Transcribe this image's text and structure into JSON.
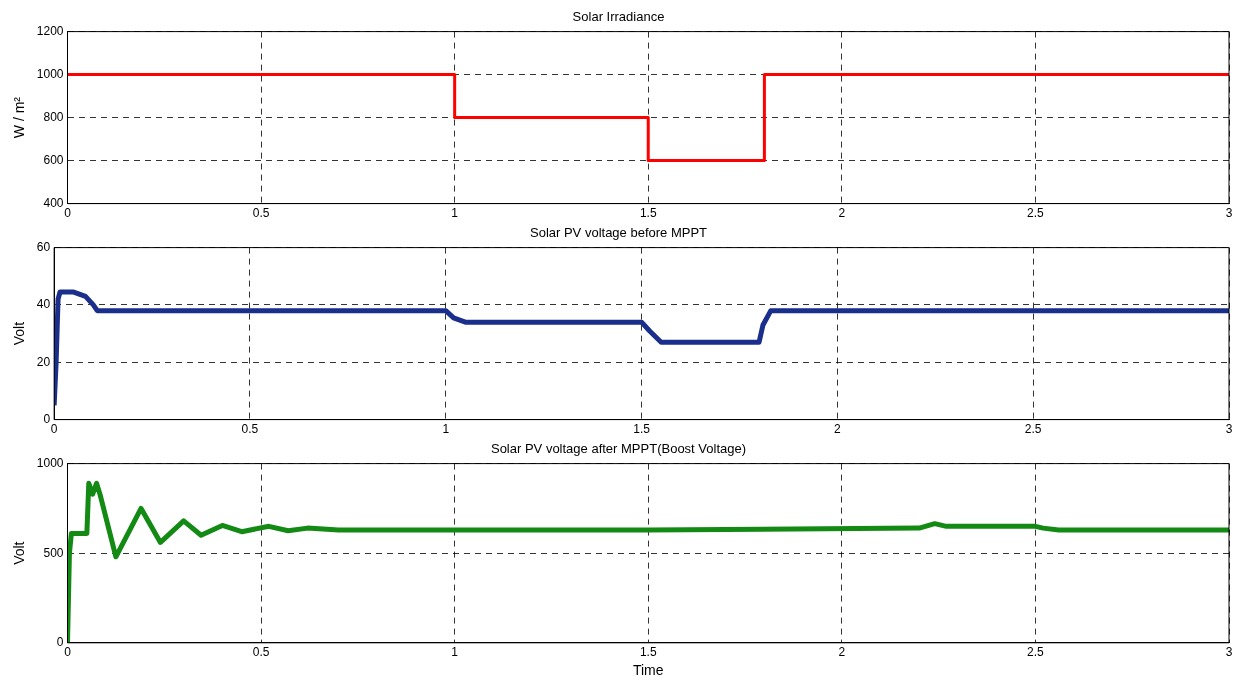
{
  "chart_data": [
    {
      "type": "step",
      "title": "Solar Irradiance",
      "ylabel": "W / m²",
      "x": [
        0,
        1,
        1.5,
        1.8,
        3
      ],
      "values": [
        1000,
        800,
        600,
        1000,
        1000
      ],
      "color": "#ff0000",
      "xlim": [
        0,
        3
      ],
      "xticks": [
        0,
        0.5,
        1,
        1.5,
        2,
        2.5,
        3
      ],
      "ylim": [
        400,
        1200
      ],
      "yticks": [
        400,
        600,
        800,
        1000,
        1200
      ],
      "grid": true,
      "legend": false
    },
    {
      "type": "line",
      "title": "Solar PV voltage before MPPT",
      "ylabel": "Volt",
      "x": [
        0,
        0.005,
        0.01,
        0.015,
        0.05,
        0.08,
        0.1,
        0.11,
        1,
        1.02,
        1.05,
        1.5,
        1.52,
        1.55,
        1.8,
        1.81,
        1.83,
        3
      ],
      "values": [
        5,
        20,
        42,
        44.5,
        44.5,
        43,
        40,
        38,
        38,
        35.5,
        34,
        34,
        31,
        27,
        27,
        33,
        38,
        38
      ],
      "color": "#1a2e8c",
      "xlim": [
        0,
        3
      ],
      "xticks": [
        0,
        0.5,
        1,
        1.5,
        2,
        2.5,
        3
      ],
      "ylim": [
        0,
        60
      ],
      "yticks": [
        0,
        20,
        40,
        60
      ],
      "grid": true,
      "legend": false
    },
    {
      "type": "line",
      "title": "Solar PV voltage after MPPT(Boost Voltage)",
      "ylabel": "Volt",
      "xlabel": "Time",
      "x": [
        0,
        0.005,
        0.01,
        0.05,
        0.055,
        0.065,
        0.075,
        0.085,
        0.125,
        0.19,
        0.24,
        0.3,
        0.345,
        0.4,
        0.45,
        0.52,
        0.57,
        0.62,
        0.7,
        1.5,
        2.2,
        2.24,
        2.27,
        2.5,
        2.52,
        2.56,
        3
      ],
      "values": [
        0,
        500,
        610,
        610,
        890,
        830,
        890,
        820,
        480,
        750,
        560,
        680,
        600,
        655,
        620,
        650,
        625,
        640,
        630,
        630,
        640,
        665,
        650,
        650,
        640,
        630,
        630
      ],
      "color": "#138a13",
      "xlim": [
        0,
        3
      ],
      "xticks": [
        0,
        0.5,
        1,
        1.5,
        2,
        2.5,
        3
      ],
      "ylim": [
        0,
        1000
      ],
      "yticks": [
        0,
        500,
        1000
      ],
      "grid": true,
      "legend": false
    }
  ]
}
